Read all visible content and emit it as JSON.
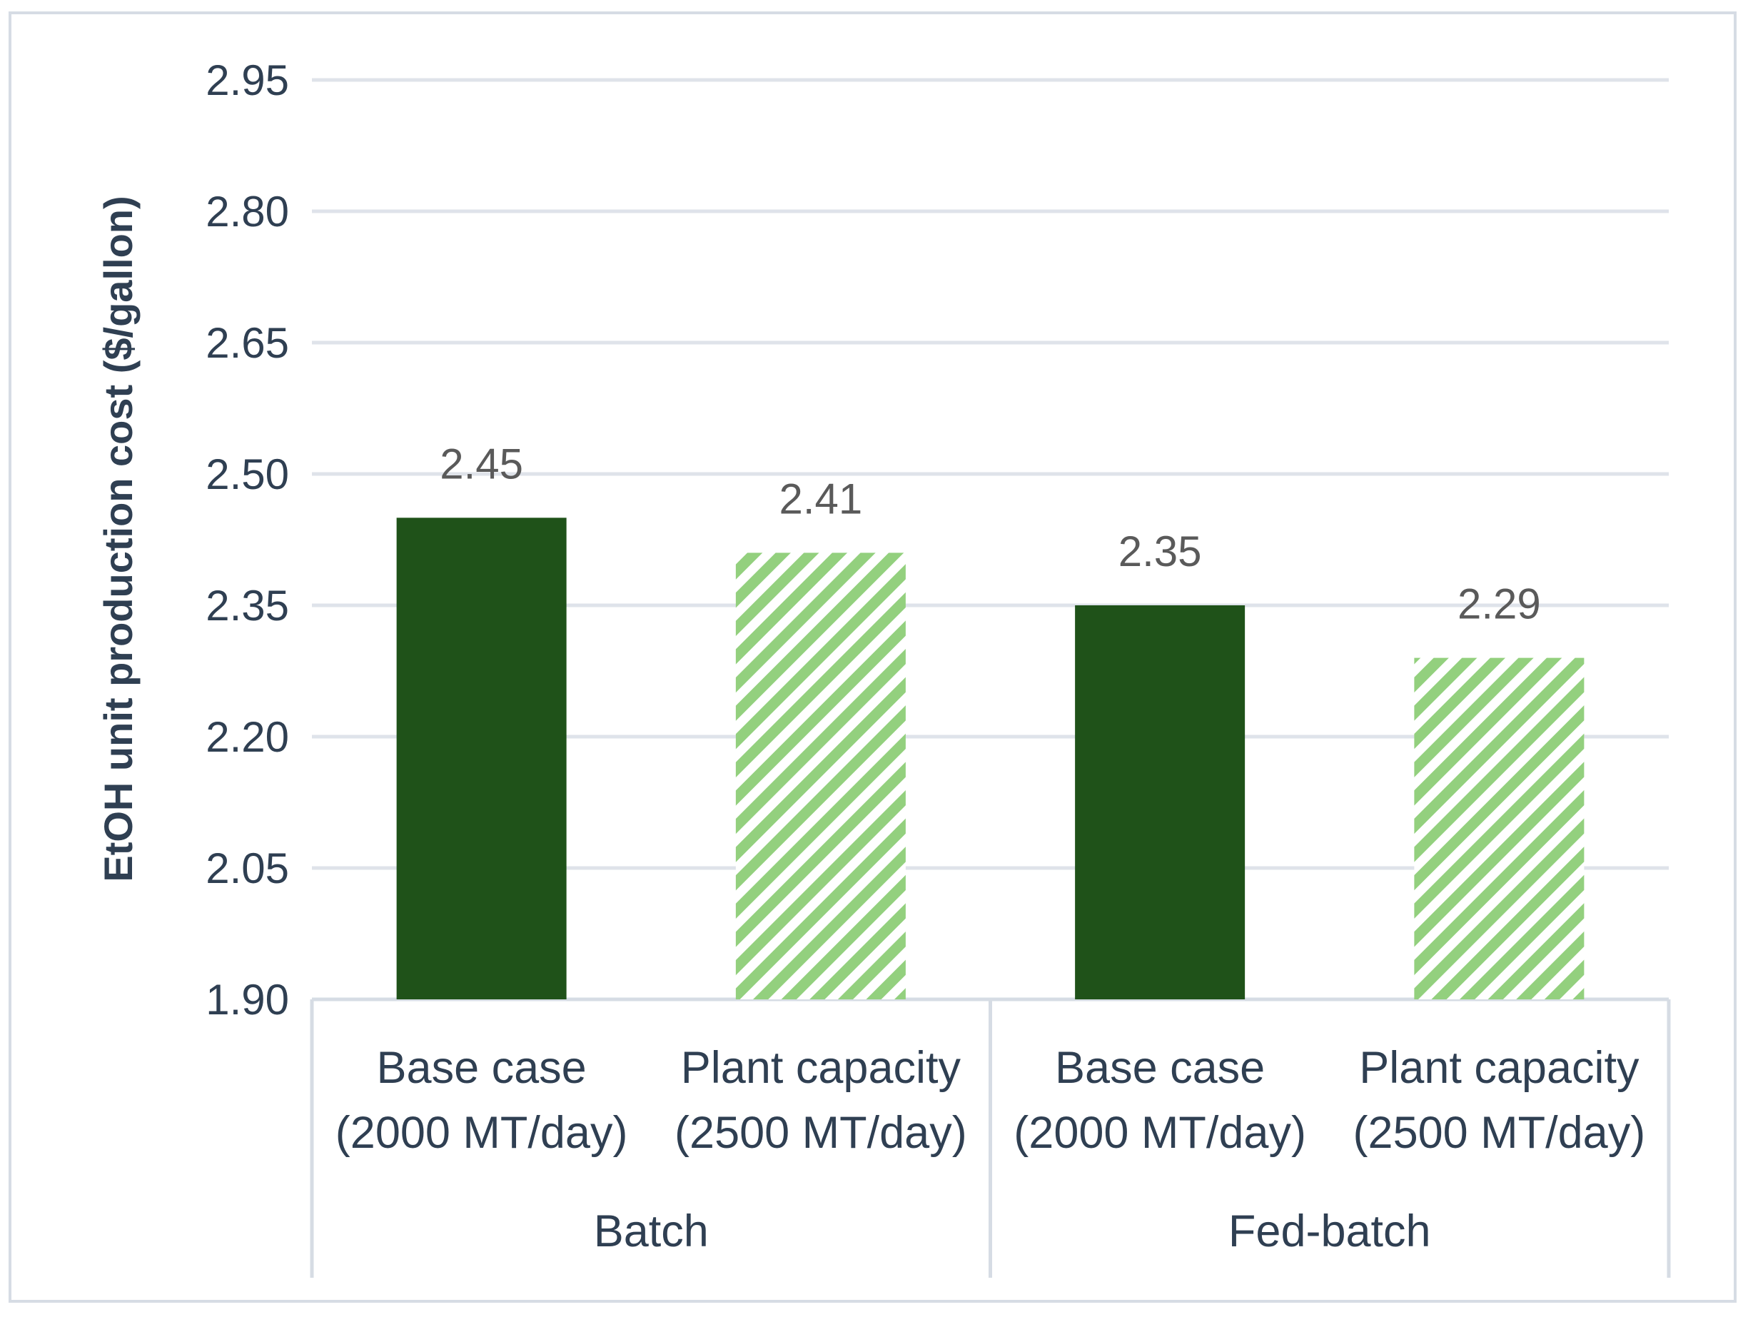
{
  "chart_data": {
    "type": "bar",
    "title": "",
    "xlabel": "",
    "ylabel": "EtOH unit production cost ($/gallon)",
    "ylim": [
      1.9,
      2.95
    ],
    "yticks": [
      "1.90",
      "2.05",
      "2.20",
      "2.35",
      "2.50",
      "2.65",
      "2.80",
      "2.95"
    ],
    "grid": true,
    "legend": "none",
    "groups": [
      "Batch",
      "Fed-batch"
    ],
    "categories": [
      {
        "line1": "Base case",
        "line2": "(2000 MT/day)",
        "group": "Batch"
      },
      {
        "line1": "Plant capacity",
        "line2": "(2500 MT/day)",
        "group": "Batch"
      },
      {
        "line1": "Base case",
        "line2": "(2000 MT/day)",
        "group": "Fed-batch"
      },
      {
        "line1": "Plant capacity",
        "line2": "(2500 MT/day)",
        "group": "Fed-batch"
      }
    ],
    "values": [
      2.45,
      2.41,
      2.35,
      2.29
    ],
    "data_labels": [
      "2.45",
      "2.41",
      "2.35",
      "2.29"
    ],
    "styles": [
      "solid",
      "hatched",
      "solid",
      "hatched"
    ],
    "colors": {
      "solid": "#1f5219",
      "hatch": "#93d07e",
      "grid": "#dfe3ea",
      "text": "#2f3f52",
      "label": "#5a5a5a",
      "border": "#d6dce4"
    }
  }
}
